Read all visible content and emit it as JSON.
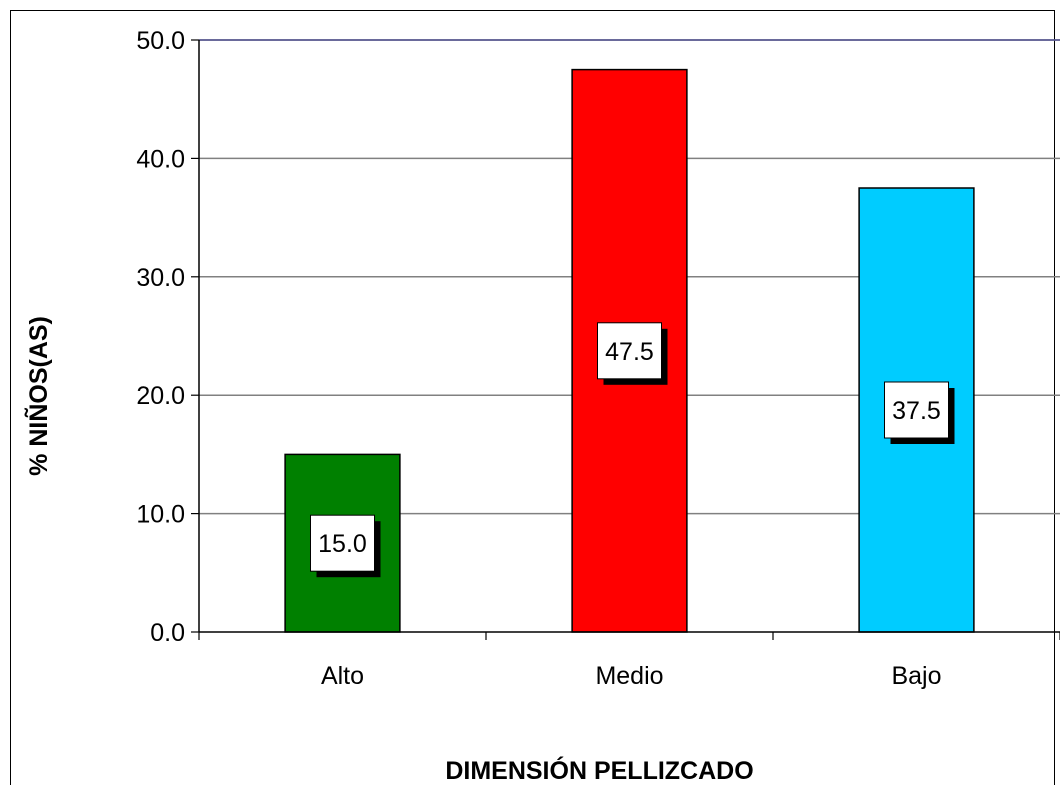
{
  "chart_data": {
    "type": "bar",
    "categories": [
      "Alto",
      "Medio",
      "Bajo"
    ],
    "values": [
      15.0,
      47.5,
      37.5
    ],
    "data_labels": [
      "15.0",
      "47.5",
      "37.5"
    ],
    "bar_colors": [
      "#008000",
      "#ff0000",
      "#00ccff"
    ],
    "xlabel": "DIMENSIÓN PELLIZCADO",
    "ylabel": "% NIÑOS(AS)",
    "ylim": [
      0,
      50
    ],
    "yticks": [
      "0.0",
      "10.0",
      "20.0",
      "30.0",
      "40.0",
      "50.0"
    ],
    "ytick_values": [
      0,
      10,
      20,
      30,
      40,
      50
    ],
    "grid": true,
    "gridline_color": "#808080",
    "plot_border_color": "#4f4f8f"
  }
}
